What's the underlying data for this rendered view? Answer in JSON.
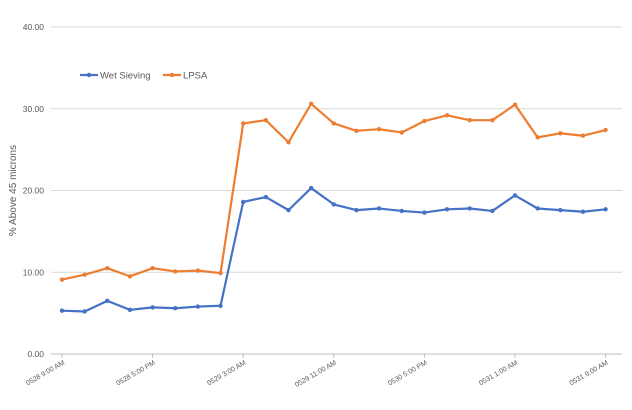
{
  "chart_data": {
    "type": "line",
    "title": "",
    "xlabel": "",
    "ylabel": "% Above 45 microns",
    "ylim": [
      0,
      40
    ],
    "yticks": [
      "0.00",
      "10.00",
      "20.00",
      "30.00",
      "40.00"
    ],
    "grid": "horizontal, light gray",
    "legend": "top-left",
    "x_tick_labels": [
      {
        "index": 0,
        "label": "0528 9:00 AM"
      },
      {
        "index": 4,
        "label": "0528 5:00 PM"
      },
      {
        "index": 8,
        "label": "0529 3:00 AM"
      },
      {
        "index": 12,
        "label": "0529 11:00 AM"
      },
      {
        "index": 16,
        "label": "0530 5:00 PM"
      },
      {
        "index": 20,
        "label": "0531 1:00 AM"
      },
      {
        "index": 24,
        "label": "0531 9:00 AM"
      }
    ],
    "series": [
      {
        "name": "Wet Sieving",
        "color": "#4472C4",
        "values": [
          5.3,
          5.2,
          6.5,
          5.4,
          5.7,
          5.6,
          5.8,
          5.9,
          18.6,
          19.2,
          17.6,
          20.3,
          18.3,
          17.6,
          17.8,
          17.5,
          17.3,
          17.7,
          17.8,
          17.5,
          19.4,
          17.8,
          17.6,
          17.4,
          17.7
        ]
      },
      {
        "name": "LPSA",
        "color": "#ED7D31",
        "values": [
          9.1,
          9.7,
          10.5,
          9.5,
          10.5,
          10.1,
          10.2,
          9.9,
          28.2,
          28.6,
          25.9,
          30.6,
          28.2,
          27.3,
          27.5,
          27.1,
          28.5,
          29.2,
          28.6,
          28.6,
          30.5,
          26.5,
          27.0,
          26.7,
          27.4
        ]
      }
    ]
  }
}
